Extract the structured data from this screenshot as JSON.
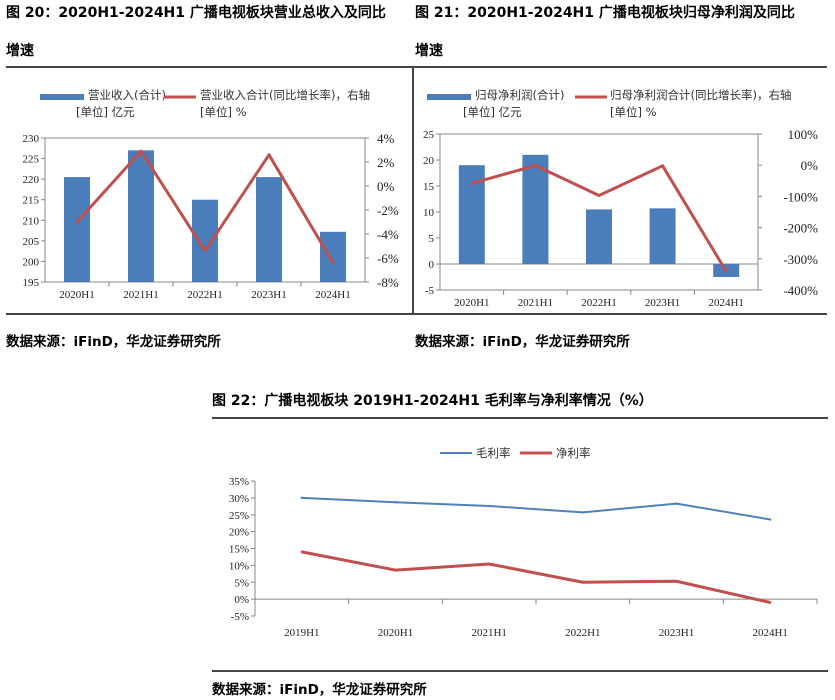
{
  "header": {
    "fig20_title": "图 20：2020H1-2024H1 广播电视板块营业总收入及同比",
    "fig20_title_cont": "增速",
    "fig21_title": "图 21：2020H1-2024H1 广播电视板块归母净利润及同比",
    "fig21_title_cont": "增速",
    "fig22_title": "图 22：广播电视板块 2019H1-2024H1 毛利率与净利率情况（%）"
  },
  "sources": {
    "fig20": "数据来源：iFinD，华龙证券研究所",
    "fig21": "数据来源：iFinD，华龙证券研究所",
    "fig22": "数据来源：iFinD，华龙证券研究所"
  },
  "colors": {
    "bar": "#4a7ebb",
    "line": "#c0504d",
    "line_blue": "#4f81bd"
  },
  "chart_data": [
    {
      "type": "bar",
      "categories": [
        "2020H1",
        "2021H1",
        "2022H1",
        "2023H1",
        "2024H1"
      ],
      "series": [
        {
          "name": "营业收入(合计)",
          "name_unit": "[单位] 亿元",
          "type": "bar",
          "values": [
            220.5,
            227,
            215,
            220.5,
            207.2
          ],
          "axis": "left"
        },
        {
          "name": "营业收入合计(同比增长率)，右轴",
          "name_unit": "[单位] %",
          "type": "line",
          "values": [
            -3.0,
            2.9,
            -5.4,
            2.6,
            -6.4
          ],
          "axis": "right"
        }
      ],
      "y_left": {
        "lim": [
          195,
          230
        ],
        "ticks": [
          "195",
          "200",
          "205",
          "210",
          "215",
          "220",
          "225",
          "230"
        ]
      },
      "y_right": {
        "lim": [
          -8,
          4
        ],
        "ticks": [
          "-8%",
          "-6%",
          "-4%",
          "-2%",
          "0%",
          "2%",
          "4%"
        ]
      }
    },
    {
      "type": "bar",
      "categories": [
        "2020H1",
        "2021H1",
        "2022H1",
        "2023H1",
        "2024H1"
      ],
      "series": [
        {
          "name": "归母净利润(合计)",
          "name_unit": "[单位] 亿元",
          "type": "bar",
          "values": [
            19,
            21,
            10.5,
            10.7,
            -2.5
          ],
          "axis": "left"
        },
        {
          "name": "归母净利润合计(同比增长率)，右轴",
          "name_unit": "[单位] %",
          "type": "line",
          "values": [
            -58,
            -1,
            -97,
            -2,
            -340
          ],
          "axis": "right"
        }
      ],
      "y_left": {
        "lim": [
          -5,
          25
        ],
        "ticks": [
          "-5",
          "0",
          "5",
          "10",
          "15",
          "20",
          "25"
        ]
      },
      "y_right": {
        "lim": [
          -400,
          100
        ],
        "ticks": [
          "-400%",
          "-300%",
          "-200%",
          "-100%",
          "0%",
          "100%"
        ]
      }
    },
    {
      "type": "line",
      "categories": [
        "2019H1",
        "2020H1",
        "2021H1",
        "2022H1",
        "2023H1",
        "2024H1"
      ],
      "series": [
        {
          "name": "毛利率",
          "values": [
            30.0,
            28.7,
            27.6,
            25.7,
            28.3,
            23.6
          ]
        },
        {
          "name": "净利率",
          "values": [
            14.0,
            8.6,
            10.4,
            5.0,
            5.3,
            -1.0
          ]
        }
      ],
      "ylim": [
        -5,
        35
      ],
      "y_ticks": [
        "-5%",
        "0%",
        "5%",
        "10%",
        "15%",
        "20%",
        "25%",
        "30%",
        "35%"
      ]
    }
  ]
}
